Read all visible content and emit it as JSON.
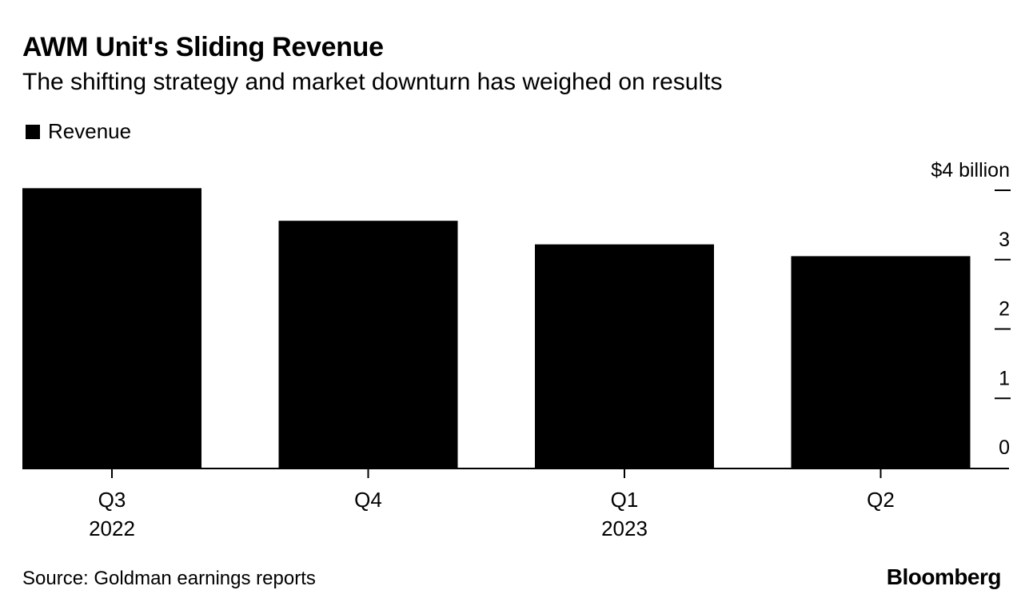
{
  "header": {
    "title": "AWM Unit's Sliding Revenue",
    "subtitle": "The shifting strategy and market downturn has weighed on results"
  },
  "legend": {
    "label": "Revenue"
  },
  "colors": {
    "bar": "#000000",
    "axis": "#000000",
    "background": "#ffffff"
  },
  "chart_data": {
    "type": "bar",
    "title": "AWM Unit's Sliding Revenue",
    "subtitle": "The shifting strategy and market downturn has weighed on results",
    "categories": [
      "Q3 2022",
      "Q4 2022",
      "Q1 2023",
      "Q2 2023"
    ],
    "x_tick_labels": [
      {
        "quarter": "Q3",
        "year": "2022"
      },
      {
        "quarter": "Q4",
        "year": ""
      },
      {
        "quarter": "Q1",
        "year": "2023"
      },
      {
        "quarter": "Q2",
        "year": ""
      }
    ],
    "series": [
      {
        "name": "Revenue",
        "values": [
          4.03,
          3.56,
          3.22,
          3.05
        ]
      }
    ],
    "y_ticks": [
      0,
      1,
      2,
      3,
      4
    ],
    "y_tick_labels": [
      "0",
      "1",
      "2",
      "3",
      "$4 billion"
    ],
    "ylim": [
      0,
      4
    ],
    "y_axis_side": "right",
    "xlabel": "",
    "ylabel": "",
    "grid": false,
    "legend_position": "top-left"
  },
  "footer": {
    "source": "Source: Goldman earnings reports",
    "brand": "Bloomberg"
  }
}
